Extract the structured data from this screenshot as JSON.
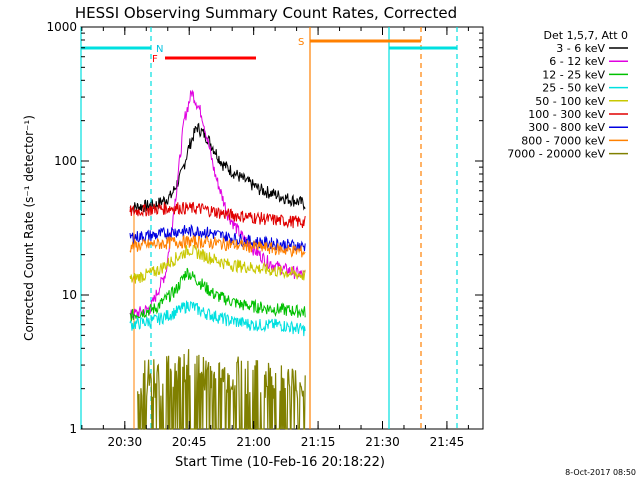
{
  "chart_data": {
    "type": "line",
    "title": "HESSI Observing Summary Count Rates, Corrected",
    "xlabel": "Start Time (10-Feb-16 20:18:22)",
    "ylabel": "Corrected Count Rate (s⁻¹ detector⁻¹)",
    "yscale": "log",
    "ylim": [
      1,
      1000
    ],
    "xlim_min": [
      20.33,
      21.89
    ],
    "x_ticks": [
      "20:30",
      "20:45",
      "21:00",
      "21:15",
      "21:30",
      "21:45"
    ],
    "y_ticks": [
      "1",
      "10",
      "100",
      "1000"
    ],
    "footer": "8-Oct-2017 08:50",
    "legend_header": "Det 1,5,7, Att 0",
    "legend_position": "right-outside",
    "series": [
      {
        "name": "3 - 6 keV",
        "color": "#000000",
        "x": [
          20.52,
          20.62,
          20.68,
          20.72,
          20.75,
          20.78,
          20.82,
          20.88,
          20.95,
          21.02,
          21.1,
          21.2
        ],
        "y": [
          45,
          47,
          55,
          80,
          130,
          180,
          150,
          95,
          75,
          62,
          55,
          48
        ]
      },
      {
        "name": "6 - 12 keV",
        "color": "#e000e0",
        "x": [
          20.52,
          20.6,
          20.66,
          20.7,
          20.73,
          20.76,
          20.8,
          20.85,
          20.9,
          20.95,
          21.0,
          21.05,
          21.1,
          21.2
        ],
        "y": [
          7,
          8,
          15,
          60,
          200,
          330,
          220,
          80,
          40,
          28,
          22,
          18,
          16,
          14
        ]
      },
      {
        "name": "12 - 25 keV",
        "color": "#00c000",
        "x": [
          20.52,
          20.62,
          20.7,
          20.74,
          20.78,
          20.85,
          20.95,
          21.05,
          21.2
        ],
        "y": [
          7,
          8,
          11,
          15,
          13,
          10,
          8.5,
          8,
          7.5
        ]
      },
      {
        "name": "25 - 50 keV",
        "color": "#00e0e0",
        "x": [
          20.52,
          20.62,
          20.7,
          20.75,
          20.8,
          20.9,
          21.0,
          21.1,
          21.2
        ],
        "y": [
          6,
          6.5,
          7.5,
          8.5,
          7.5,
          6.5,
          6,
          6,
          5.5
        ]
      },
      {
        "name": "50 - 100 keV",
        "color": "#c8c800",
        "x": [
          20.52,
          20.62,
          20.7,
          20.75,
          20.8,
          20.9,
          21.0,
          21.1,
          21.2
        ],
        "y": [
          13,
          15,
          19,
          22,
          20,
          17,
          16,
          15,
          14
        ]
      },
      {
        "name": "100 - 300 keV",
        "color": "#e00000",
        "x": [
          20.52,
          20.62,
          20.7,
          20.8,
          20.9,
          21.0,
          21.1,
          21.2
        ],
        "y": [
          42,
          44,
          45,
          44,
          40,
          38,
          36,
          35
        ]
      },
      {
        "name": "300 - 800 keV",
        "color": "#0000e0",
        "x": [
          20.52,
          20.62,
          20.7,
          20.8,
          20.9,
          21.0,
          21.1,
          21.2
        ],
        "y": [
          27,
          28,
          30,
          30,
          27,
          25,
          24,
          23
        ]
      },
      {
        "name": "800 - 7000 keV",
        "color": "#ff8000",
        "x": [
          20.52,
          20.62,
          20.7,
          20.8,
          20.9,
          21.0,
          21.1,
          21.2
        ],
        "y": [
          23,
          24,
          25,
          25,
          24,
          23,
          22,
          21
        ]
      },
      {
        "name": "7000 - 20000 keV",
        "color": "#808000",
        "x": [
          20.55,
          20.65,
          20.75,
          20.85,
          20.95,
          21.05,
          21.2
        ],
        "y": [
          2,
          2.2,
          2.5,
          2,
          2.2,
          2,
          1.8
        ]
      }
    ],
    "annotations": [
      {
        "label": "N",
        "color": "#00c0e0"
      },
      {
        "label": "F",
        "color": "#ff0000"
      },
      {
        "label": "S",
        "color": "#ff8000"
      }
    ]
  }
}
